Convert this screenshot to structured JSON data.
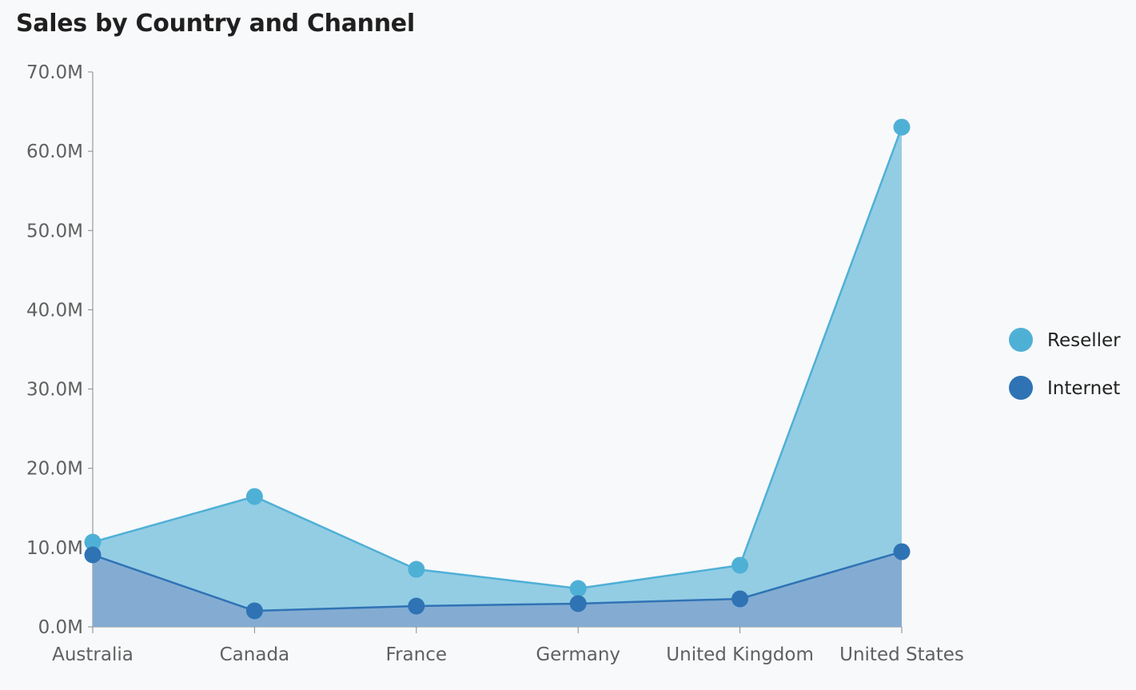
{
  "chart_data": {
    "type": "area",
    "title": "Sales by Country and Channel",
    "categories": [
      "Australia",
      "Canada",
      "France",
      "Germany",
      "United Kingdom",
      "United States"
    ],
    "series": [
      {
        "name": "Reseller",
        "color": "#4fb0d6",
        "fill": "#93cde4",
        "values": [
          10.69,
          16.44,
          7.26,
          4.84,
          7.77,
          63.04
        ]
      },
      {
        "name": "Internet",
        "color": "#2f73b5",
        "fill": "#83a9cf",
        "values": [
          9.08,
          2.02,
          2.62,
          2.93,
          3.53,
          9.48
        ]
      }
    ],
    "ylim": [
      0,
      70
    ],
    "yticks": [
      "0.0M",
      "10.0M",
      "20.0M",
      "30.0M",
      "40.0M",
      "50.0M",
      "60.0M",
      "70.0M"
    ],
    "legend_position": "right",
    "xlabel": "",
    "ylabel": ""
  }
}
